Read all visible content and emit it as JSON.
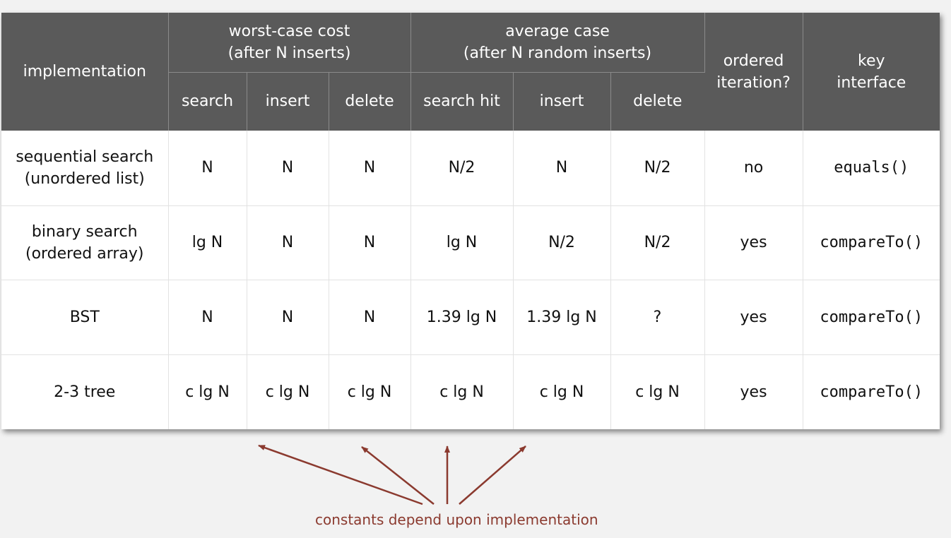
{
  "header": {
    "implementation": "implementation",
    "worst_case_line1": "worst-case cost",
    "worst_case_line2": "(after N inserts)",
    "average_case_line1": "average case",
    "average_case_line2": "(after N random inserts)",
    "ordered_line1": "ordered",
    "ordered_line2": "iteration?",
    "key_line1": "key",
    "key_line2": "interface",
    "sub": {
      "search": "search",
      "insert": "insert",
      "delete": "delete",
      "search_hit": "search hit",
      "avg_insert": "insert",
      "avg_delete": "delete"
    }
  },
  "rows": [
    {
      "impl_line1": "sequential search",
      "impl_line2": "(unordered list)",
      "worst_search": "N",
      "worst_insert": "N",
      "worst_delete": "N",
      "avg_search_hit": "N/2",
      "avg_insert": "N",
      "avg_delete": "N/2",
      "ordered": "no",
      "key_interface": "equals()"
    },
    {
      "impl_line1": "binary search",
      "impl_line2": "(ordered array)",
      "worst_search": "lg N",
      "worst_insert": "N",
      "worst_delete": "N",
      "avg_search_hit": "lg N",
      "avg_insert": "N/2",
      "avg_delete": "N/2",
      "ordered": "yes",
      "key_interface": "compareTo()"
    },
    {
      "impl_line1": "BST",
      "impl_line2": "",
      "worst_search": "N",
      "worst_insert": "N",
      "worst_delete": "N",
      "avg_search_hit": "1.39 lg N",
      "avg_insert": "1.39 lg N",
      "avg_delete": "?",
      "ordered": "yes",
      "key_interface": "compareTo()"
    },
    {
      "impl_line1": "2-3 tree",
      "impl_line2": "",
      "worst_search": "c lg N",
      "worst_insert": "c lg N",
      "worst_delete": "c lg N",
      "avg_search_hit": "c lg N",
      "avg_insert": "c lg N",
      "avg_delete": "c lg N",
      "ordered": "yes",
      "key_interface": "compareTo()"
    }
  ],
  "annotation": {
    "text": "constants depend upon implementation",
    "color": "#8b3a2f"
  },
  "colors": {
    "header_bg": "#5a5a5a",
    "highlight": "#8b3a2f",
    "page_bg": "#f2f2f2"
  }
}
